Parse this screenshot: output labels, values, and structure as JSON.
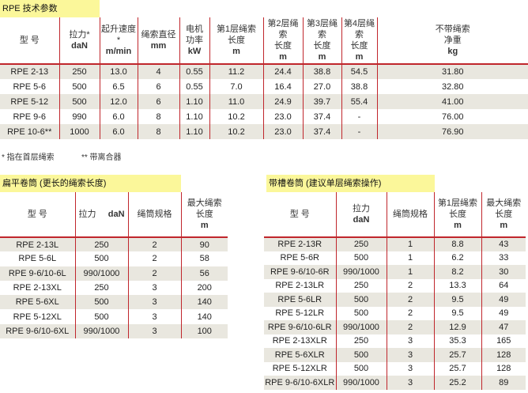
{
  "main": {
    "title": "RPE 技术参数",
    "headers": [
      [
        "型 号",
        ""
      ],
      [
        "拉力*",
        "daN"
      ],
      [
        "起升速度*",
        "m/min"
      ],
      [
        "绳索直径",
        "mm"
      ],
      [
        "电机\n功率",
        "kW"
      ],
      [
        "第1层绳索\n长度",
        "m"
      ],
      [
        "第2层绳索\n长度",
        "m"
      ],
      [
        "第3层绳索\n长度",
        "m"
      ],
      [
        "第4层绳索\n长度",
        "m"
      ],
      [
        "不带绳索\n净重",
        "kg"
      ]
    ],
    "rows": [
      [
        "RPE 2-13",
        "250",
        "13.0",
        "4",
        "0.55",
        "11.2",
        "24.4",
        "38.8",
        "54.5",
        "31.80"
      ],
      [
        "RPE 5-6",
        "500",
        "6.5",
        "6",
        "0.55",
        "7.0",
        "16.4",
        "27.0",
        "38.8",
        "32.80"
      ],
      [
        "RPE 5-12",
        "500",
        "12.0",
        "6",
        "1.10",
        "11.0",
        "24.9",
        "39.7",
        "55.4",
        "41.00"
      ],
      [
        "RPE 9-6",
        "990",
        "6.0",
        "8",
        "1.10",
        "10.2",
        "23.0",
        "37.4",
        "-",
        "76.00"
      ],
      [
        "RPE 10-6**",
        "1000",
        "6.0",
        "8",
        "1.10",
        "10.2",
        "23.0",
        "37.4",
        "-",
        "76.90"
      ]
    ]
  },
  "footnotes": [
    "* 指在首层绳索",
    "** 带离合器"
  ],
  "flat": {
    "title": "扁平卷筒 (更长的绳索长度)",
    "headers": [
      [
        "型 号",
        ""
      ],
      [
        "拉力",
        "daN"
      ],
      [
        "绳筒规格",
        ""
      ],
      [
        "最大绳索\n长度",
        "m"
      ]
    ],
    "rows": [
      [
        "RPE 2-13L",
        "250",
        "2",
        "90"
      ],
      [
        "RPE 5-6L",
        "500",
        "2",
        "58"
      ],
      [
        "RPE 9-6/10-6L",
        "990/1000",
        "2",
        "56"
      ],
      [
        "RPE 2-13XL",
        "250",
        "3",
        "200"
      ],
      [
        "RPE 5-6XL",
        "500",
        "3",
        "140"
      ],
      [
        "RPE 5-12XL",
        "500",
        "3",
        "140"
      ],
      [
        "RPE 9-6/10-6XL",
        "990/1000",
        "3",
        "100"
      ]
    ]
  },
  "grooved": {
    "title": "带槽卷筒 (建议单层绳索操作)",
    "headers": [
      [
        "型 号",
        ""
      ],
      [
        "拉力",
        "daN"
      ],
      [
        "绳筒规格",
        ""
      ],
      [
        "第1层绳索\n长度",
        "m"
      ],
      [
        "最大绳索\n长度",
        "m"
      ]
    ],
    "rows": [
      [
        "RPE 2-13R",
        "250",
        "1",
        "8.8",
        "43"
      ],
      [
        "RPE 5-6R",
        "500",
        "1",
        "6.2",
        "33"
      ],
      [
        "RPE 9-6/10-6R",
        "990/1000",
        "1",
        "8.2",
        "30"
      ],
      [
        "RPE 2-13LR",
        "250",
        "2",
        "13.3",
        "64"
      ],
      [
        "RPE 5-6LR",
        "500",
        "2",
        "9.5",
        "49"
      ],
      [
        "RPE 5-12LR",
        "500",
        "2",
        "9.5",
        "49"
      ],
      [
        "RPE 9-6/10-6LR",
        "990/1000",
        "2",
        "12.9",
        "47"
      ],
      [
        "RPE 2-13XLR",
        "250",
        "3",
        "35.3",
        "165"
      ],
      [
        "RPE 5-6XLR",
        "500",
        "3",
        "25.7",
        "128"
      ],
      [
        "RPE 5-12XLR",
        "500",
        "3",
        "25.7",
        "128"
      ],
      [
        "RPE 9-6/10-6XLR",
        "990/1000",
        "3",
        "25.2",
        "89"
      ]
    ]
  }
}
